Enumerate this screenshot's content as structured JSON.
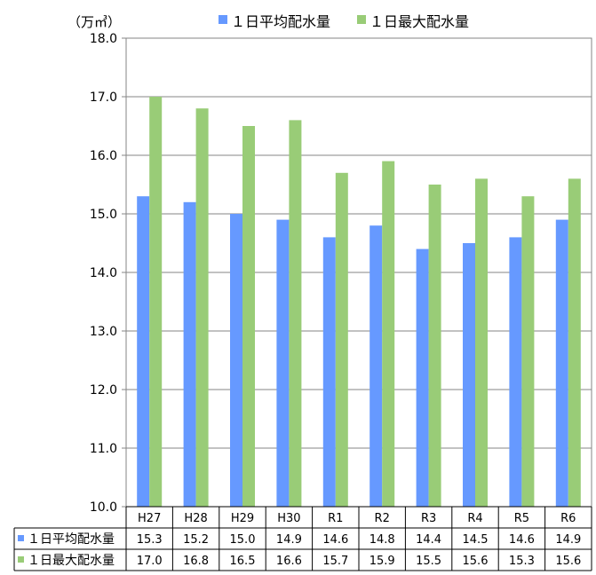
{
  "chart_data": {
    "type": "bar",
    "unit_label": "（万㎥）",
    "categories": [
      "H27",
      "H28",
      "H29",
      "H30",
      "R1",
      "R2",
      "R3",
      "R4",
      "R5",
      "R6"
    ],
    "series": [
      {
        "name": "１日平均配水量",
        "color": "#6699FF",
        "values": [
          15.3,
          15.2,
          15.0,
          14.9,
          14.6,
          14.8,
          14.4,
          14.5,
          14.6,
          14.9
        ]
      },
      {
        "name": "１日最大配水量",
        "color": "#99CC77",
        "values": [
          17.0,
          16.8,
          16.5,
          16.6,
          15.7,
          15.9,
          15.5,
          15.6,
          15.3,
          15.6
        ]
      }
    ],
    "ylim": [
      10.0,
      18.0
    ],
    "yticks": [
      "10.0",
      "11.0",
      "12.0",
      "13.0",
      "14.0",
      "15.0",
      "16.0",
      "17.0",
      "18.0"
    ],
    "grid": true,
    "legend_position": "top",
    "data_table": true
  }
}
